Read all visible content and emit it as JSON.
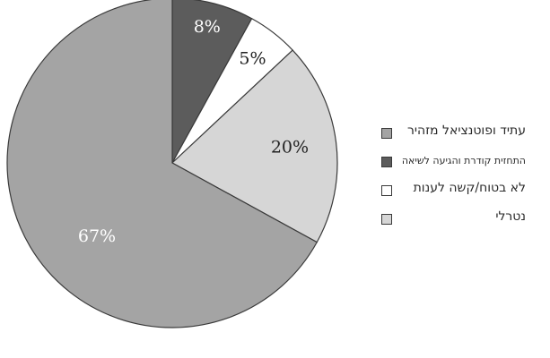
{
  "chart_data": {
    "type": "pie",
    "title": "",
    "slices": [
      {
        "label": "התחזית קודרת והגיעה לשיאה",
        "value": 8,
        "display": "8%",
        "color": "#5c5c5c",
        "label_color": "#ffffff"
      },
      {
        "label": "לא בטוח/קשה לענות",
        "value": 5,
        "display": "5%",
        "color": "#ffffff",
        "label_color": "#222222"
      },
      {
        "label": "נטרלי",
        "value": 20,
        "display": "20%",
        "color": "#d6d6d6",
        "label_color": "#222222"
      },
      {
        "label": "עתיד ופוטנציאל מזהיר",
        "value": 67,
        "display": "67%",
        "color": "#a4a4a4",
        "label_color": "#ffffff"
      }
    ],
    "start_angle_deg": 0,
    "direction": "clockwise",
    "legend": {
      "placement": "right",
      "entries": [
        {
          "label": "עתיד ופוטנציאל מזהיר",
          "color": "#a4a4a4",
          "small": false
        },
        {
          "label": "התחזית קודרת והגיעה לשיאה",
          "color": "#5c5c5c",
          "small": true
        },
        {
          "label": "לא בטוח/קשה לענות",
          "color": "#ffffff",
          "small": false
        },
        {
          "label": "נטרלי",
          "color": "#d6d6d6",
          "small": false
        }
      ]
    }
  }
}
